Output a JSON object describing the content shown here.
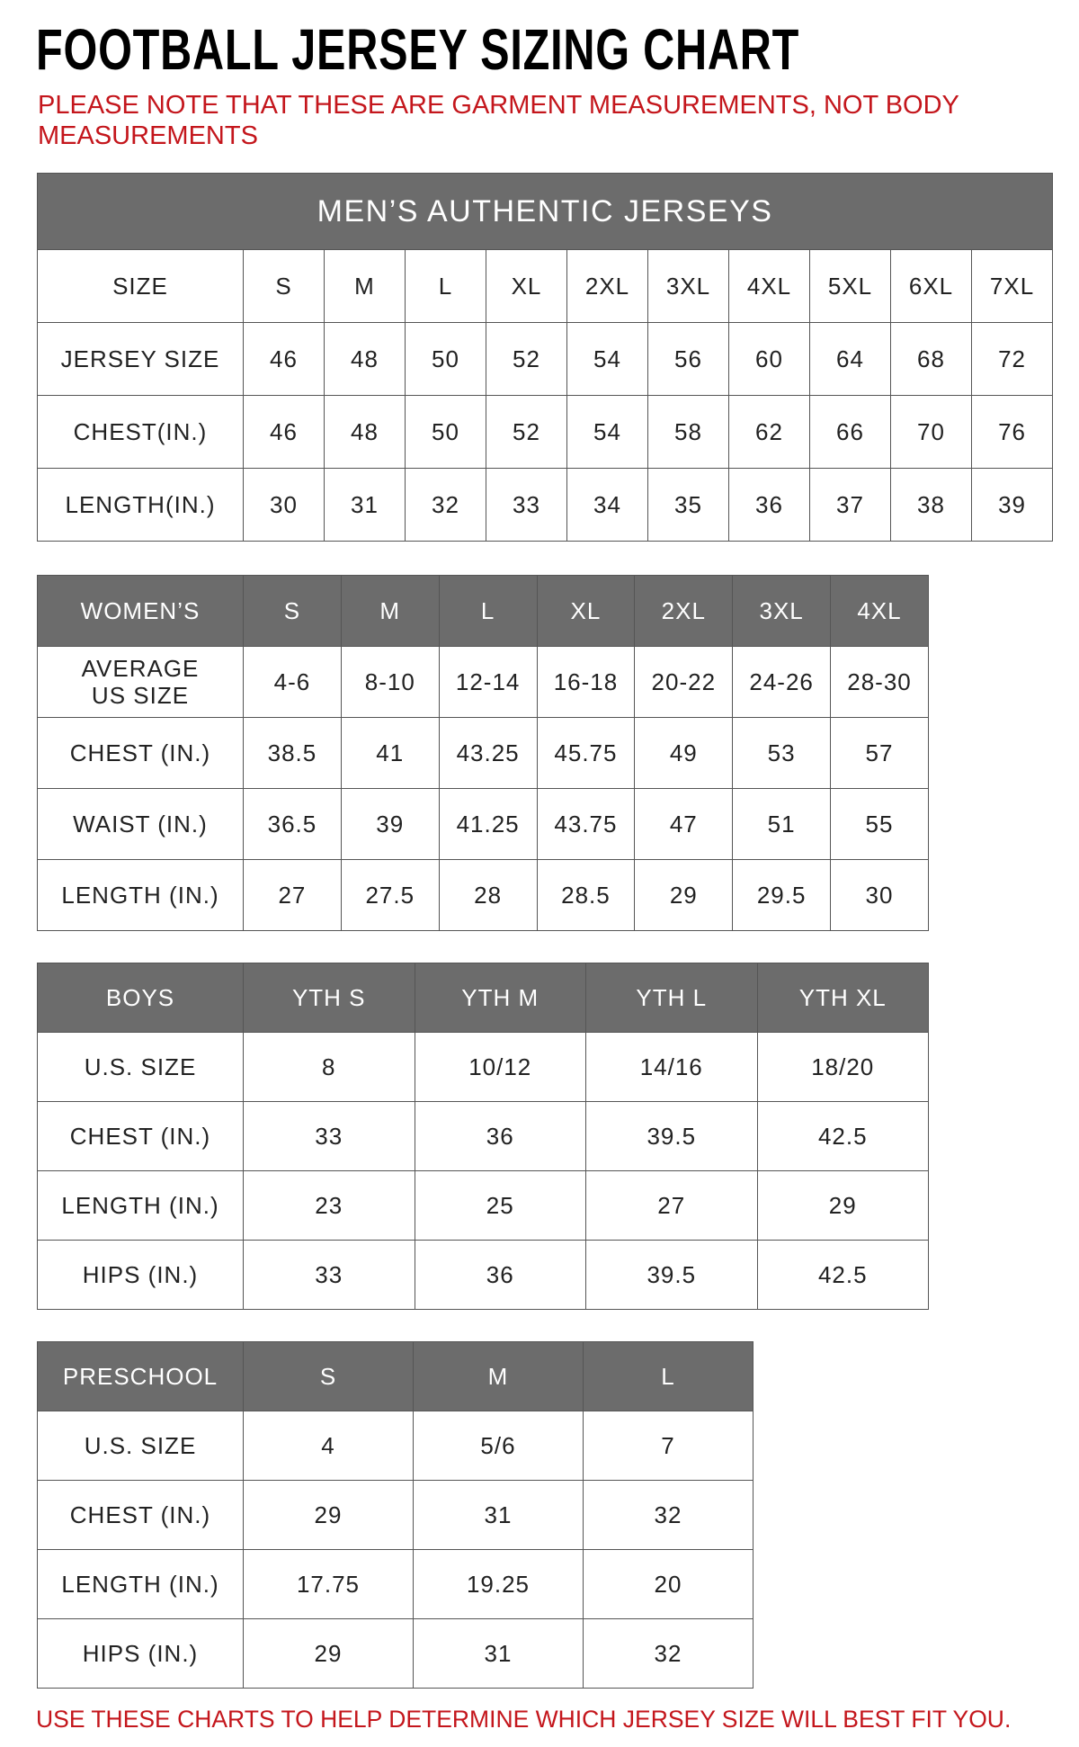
{
  "title": "FOOTBALL JERSEY SIZING CHART",
  "note": "PLEASE NOTE THAT THESE ARE GARMENT MEASUREMENTS, NOT BODY MEASUREMENTS",
  "tables": [
    {
      "caption": "MEN’S AUTHENTIC JERSEYS",
      "header": [
        "SIZE",
        "S",
        "M",
        "L",
        "XL",
        "2XL",
        "3XL",
        "4XL",
        "5XL",
        "6XL",
        "7XL"
      ],
      "rows": [
        [
          "JERSEY SIZE",
          "46",
          "48",
          "50",
          "52",
          "54",
          "56",
          "60",
          "64",
          "68",
          "72"
        ],
        [
          "CHEST(IN.)",
          "46",
          "48",
          "50",
          "52",
          "54",
          "58",
          "62",
          "66",
          "70",
          "76"
        ],
        [
          "LENGTH(IN.)",
          "30",
          "31",
          "32",
          "33",
          "34",
          "35",
          "36",
          "37",
          "38",
          "39"
        ]
      ]
    },
    {
      "header": [
        "WOMEN’S",
        "S",
        "M",
        "L",
        "XL",
        "2XL",
        "3XL",
        "4XL"
      ],
      "rows": [
        [
          "AVERAGE\nUS SIZE",
          "4-6",
          "8-10",
          "12-14",
          "16-18",
          "20-22",
          "24-26",
          "28-30"
        ],
        [
          "CHEST (IN.)",
          "38.5",
          "41",
          "43.25",
          "45.75",
          "49",
          "53",
          "57"
        ],
        [
          "WAIST (IN.)",
          "36.5",
          "39",
          "41.25",
          "43.75",
          "47",
          "51",
          "55"
        ],
        [
          "LENGTH (IN.)",
          "27",
          "27.5",
          "28",
          "28.5",
          "29",
          "29.5",
          "30"
        ]
      ]
    },
    {
      "header": [
        "BOYS",
        "YTH S",
        "YTH M",
        "YTH L",
        "YTH XL"
      ],
      "rows": [
        [
          "U.S. SIZE",
          "8",
          "10/12",
          "14/16",
          "18/20"
        ],
        [
          "CHEST (IN.)",
          "33",
          "36",
          "39.5",
          "42.5"
        ],
        [
          "LENGTH (IN.)",
          "23",
          "25",
          "27",
          "29"
        ],
        [
          "HIPS (IN.)",
          "33",
          "36",
          "39.5",
          "42.5"
        ]
      ]
    },
    {
      "header": [
        "PRESCHOOL",
        "S",
        "M",
        "L"
      ],
      "rows": [
        [
          "U.S. SIZE",
          "4",
          "5/6",
          "7"
        ],
        [
          "CHEST (IN.)",
          "29",
          "31",
          "32"
        ],
        [
          "LENGTH (IN.)",
          "17.75",
          "19.25",
          "20"
        ],
        [
          "HIPS (IN.)",
          "29",
          "31",
          "32"
        ]
      ]
    }
  ],
  "footer": "USE THESE CHARTS TO HELP DETERMINE WHICH JERSEY SIZE WILL BEST FIT YOU."
}
